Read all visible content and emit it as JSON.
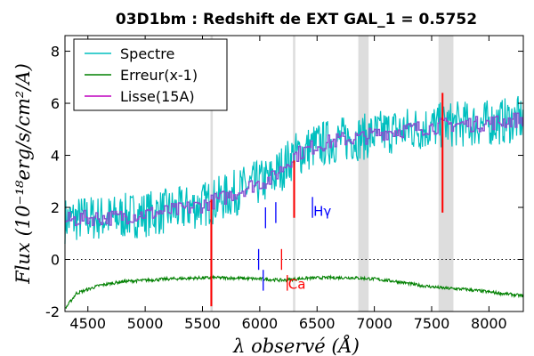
{
  "chart_data": {
    "type": "line",
    "title": "03D1bm : Redshift de EXT GAL_1 = 0.5752",
    "xlabel": "λ observé (Å)",
    "ylabel": "Flux (10⁻¹⁸erg/s/cm²/A)",
    "xlim": [
      4300,
      8300
    ],
    "ylim": [
      -2,
      8.6
    ],
    "xticks": [
      4500,
      5000,
      5500,
      6000,
      6500,
      7000,
      7500,
      8000
    ],
    "xtick_labels": [
      "4500",
      "5000",
      "5500",
      "6000",
      "6500",
      "7000",
      "7500",
      "8000"
    ],
    "yticks": [
      -2,
      0,
      2,
      4,
      6,
      8
    ],
    "ytick_labels": [
      "-2",
      "0",
      "2",
      "4",
      "6",
      "8"
    ],
    "zero_line": 0,
    "legend_position": "top-left",
    "series": [
      {
        "name": "Spectre",
        "color": "#00bfbf",
        "x": [
          4300,
          4500,
          4700,
          4900,
          5100,
          5300,
          5500,
          5700,
          5900,
          6100,
          6300,
          6500,
          6700,
          6900,
          7100,
          7300,
          7500,
          7700,
          7900,
          8100,
          8300
        ],
        "y": [
          1.5,
          1.6,
          1.6,
          1.7,
          1.8,
          1.9,
          2.1,
          2.4,
          2.8,
          3.1,
          4.0,
          4.4,
          4.6,
          4.7,
          4.9,
          5.0,
          5.1,
          5.2,
          5.2,
          5.3,
          5.4
        ],
        "noise": 0.9
      },
      {
        "name": "Erreur(x-1)",
        "color": "#008000",
        "x": [
          4300,
          4400,
          4600,
          4800,
          5000,
          5200,
          5400,
          5600,
          5800,
          6000,
          6200,
          6400,
          6600,
          6800,
          7000,
          7200,
          7400,
          7600,
          7800,
          8000,
          8200,
          8300
        ],
        "y": [
          -1.9,
          -1.3,
          -1.0,
          -0.85,
          -0.8,
          -0.75,
          -0.72,
          -0.7,
          -0.72,
          -0.75,
          -0.8,
          -0.72,
          -0.7,
          -0.7,
          -0.75,
          -0.85,
          -1.0,
          -1.1,
          -1.15,
          -1.25,
          -1.35,
          -1.4
        ]
      },
      {
        "name": "Lisse(15A)",
        "color": "#bf00bf",
        "x": [
          4300,
          4500,
          4700,
          4900,
          5100,
          5300,
          5500,
          5700,
          5900,
          6100,
          6300,
          6500,
          6700,
          6900,
          7100,
          7300,
          7500,
          7700,
          7900,
          8100,
          8300
        ],
        "y": [
          1.5,
          1.6,
          1.6,
          1.7,
          1.8,
          1.9,
          2.1,
          2.4,
          2.8,
          3.1,
          4.0,
          4.4,
          4.6,
          4.7,
          4.9,
          5.0,
          5.1,
          5.2,
          5.2,
          5.3,
          5.4
        ]
      }
    ],
    "shaded_bands": [
      [
        5570,
        5590
      ],
      [
        6290,
        6310
      ],
      [
        6860,
        6950
      ],
      [
        7560,
        7690
      ]
    ],
    "sky_lines_red": [
      {
        "x": 5577,
        "y1": -1.8,
        "y2": 2.3
      },
      {
        "x": 6300,
        "y1": 1.6,
        "y2": 3.8
      },
      {
        "x": 7595,
        "y1": 1.8,
        "y2": 6.4
      }
    ],
    "line_markers": [
      {
        "x": 6050,
        "y1": 1.2,
        "y2": 2.0,
        "color": "#0000ff"
      },
      {
        "x": 6140,
        "y1": 1.4,
        "y2": 2.2,
        "color": "#0000ff"
      },
      {
        "x": 5990,
        "y1": -0.4,
        "y2": 0.4,
        "color": "#0000ff"
      },
      {
        "x": 6030,
        "y1": -1.2,
        "y2": -0.4,
        "color": "#0000ff"
      },
      {
        "x": 6460,
        "y1": 1.6,
        "y2": 2.4,
        "color": "#0000ff",
        "label": "Hγ"
      },
      {
        "x": 6190,
        "y1": -0.4,
        "y2": 0.4,
        "color": "#ff0000"
      },
      {
        "x": 6240,
        "y1": -1.2,
        "y2": -0.6,
        "color": "#ff0000",
        "label": "Ca"
      }
    ]
  }
}
